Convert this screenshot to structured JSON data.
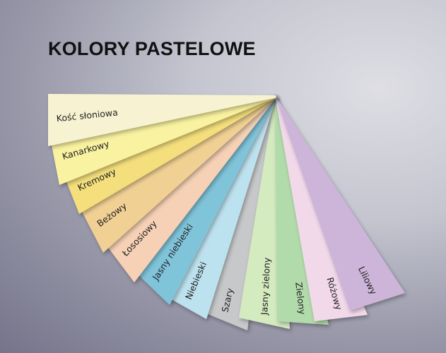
{
  "title": "KOLORY PASTELOWE",
  "swatches": [
    {
      "label": "Kość słoniowa",
      "color": "#f7f3d2"
    },
    {
      "label": "Kanarkowy",
      "color": "#f9f2a0"
    },
    {
      "label": "Kremowy",
      "color": "#f4df7c"
    },
    {
      "label": "Beżowy",
      "color": "#f1d193"
    },
    {
      "label": "Łososiowy",
      "color": "#f6d1b5"
    },
    {
      "label": "Jasny niebieski",
      "color": "#80c4da"
    },
    {
      "label": "Niebieski",
      "color": "#bde2ef"
    },
    {
      "label": "Szary",
      "color": "#c7c8ca"
    },
    {
      "label": "Jasny zielony",
      "color": "#d4eabf"
    },
    {
      "label": "Zielony",
      "color": "#b2dbab"
    },
    {
      "label": "Różowy",
      "color": "#f2d9ea"
    },
    {
      "label": "Liliowy",
      "color": "#cdb5da"
    }
  ]
}
